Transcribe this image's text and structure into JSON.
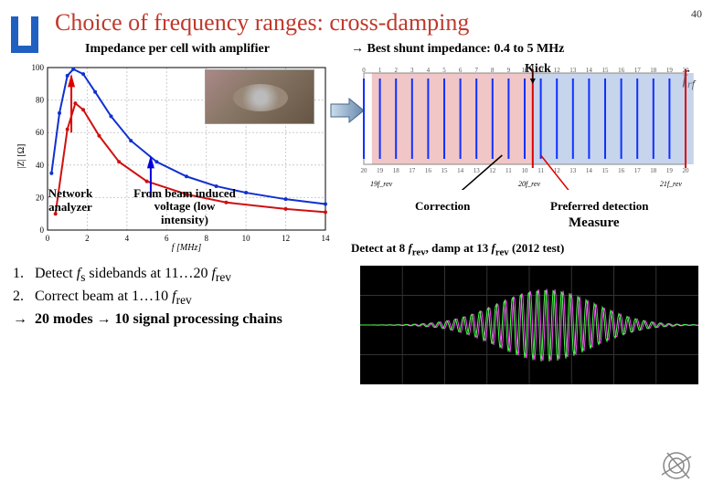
{
  "page_number": "40",
  "title": "Choice of frequency ranges: cross-damping",
  "left": {
    "heading": "Impedance per cell with amplifier",
    "ylabel": "|Z| [Ω]",
    "xlabel": "f [MHz]",
    "xticks": [
      0,
      2,
      4,
      6,
      8,
      10,
      12,
      14
    ],
    "yticks": [
      0,
      20,
      40,
      60,
      80,
      100
    ],
    "network_label": "Network\nanalyzer",
    "beam_label": "From beam\ninduced voltage\n(low intensity)",
    "curve1": {
      "color": "#1030d0",
      "points": [
        [
          0.2,
          35
        ],
        [
          0.6,
          72
        ],
        [
          1.0,
          95
        ],
        [
          1.3,
          99
        ],
        [
          1.8,
          96
        ],
        [
          2.4,
          85
        ],
        [
          3.2,
          70
        ],
        [
          4.2,
          55
        ],
        [
          5.5,
          42
        ],
        [
          7.0,
          33
        ],
        [
          8.5,
          27
        ],
        [
          10,
          23
        ],
        [
          12,
          19
        ],
        [
          14,
          16
        ]
      ]
    },
    "curve2": {
      "color": "#d01010",
      "points": [
        [
          0.4,
          10
        ],
        [
          1.0,
          62
        ],
        [
          1.4,
          78
        ],
        [
          1.8,
          74
        ],
        [
          2.6,
          58
        ],
        [
          3.6,
          42
        ],
        [
          5.0,
          30
        ],
        [
          7.0,
          22
        ],
        [
          9.0,
          17
        ],
        [
          12,
          13
        ],
        [
          14,
          11
        ]
      ]
    }
  },
  "right": {
    "heading_prefix": "→ Best shunt impedance: ",
    "heading_highlight": "0.4 to 5 MHz",
    "kick": "Kick",
    "frf_label": "f",
    "frf_sub": "rf",
    "spectrum": {
      "top_labels": [
        0,
        1,
        2,
        3,
        4,
        5,
        6,
        7,
        8,
        9,
        10,
        11,
        12,
        13,
        14,
        15,
        16,
        17,
        18,
        19,
        20
      ],
      "bot_labels": [
        20,
        19,
        18,
        17,
        16,
        15,
        14,
        13,
        12,
        11,
        10,
        11,
        12,
        13,
        14,
        15,
        16,
        17,
        18,
        19,
        20,
        19
      ],
      "correction_range": [
        1,
        10
      ],
      "detection_range": [
        11,
        20
      ],
      "line_color": "#1030ff",
      "kick_x": 10.5
    },
    "correction_label": "Correction",
    "detection_label": "Preferred detection",
    "measure_label": "Measure",
    "caption2": "Detect at 8 f_rev, damp at 13 f_rev (2012 test)",
    "axis_marks": [
      "19f_rev",
      "20f_rev",
      "21f_rev"
    ]
  },
  "list": {
    "items": [
      {
        "n": "1.",
        "text": "Detect f_s sidebands at 11…20 f_rev"
      },
      {
        "n": "2.",
        "text": "Correct beam at 1…10 f_rev"
      },
      {
        "n": "→",
        "bold": true,
        "text": "20 modes → 10 signal processing chains"
      }
    ]
  },
  "scope": {
    "trace_colors": [
      "#ff44ff",
      "#44ff44"
    ],
    "bg": "#000000"
  },
  "colors": {
    "title": "#c0392b",
    "band_corr": "#e8a0a0",
    "band_det": "#a0b8e0"
  }
}
